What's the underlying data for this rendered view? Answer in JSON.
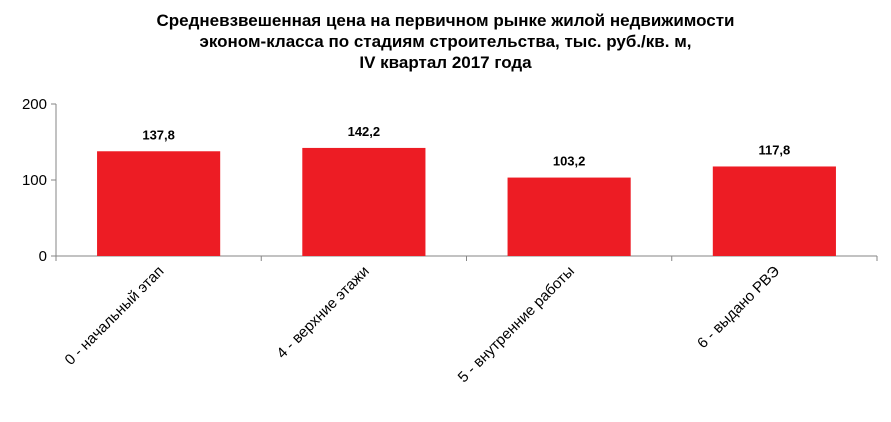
{
  "chart_data": {
    "type": "bar",
    "title_lines": [
      "Средневзвешенная цена на первичном рынке жилой недвижимости",
      "эконом-класса по стадиям строительства, тыс. руб./кв. м,",
      "IV квартал 2017 года"
    ],
    "categories": [
      "0 - начальный этап",
      "4 - верхние этажи",
      "5 - внутренние работы",
      "6 - выдано РВЭ"
    ],
    "values": [
      137.8,
      142.2,
      103.2,
      117.8
    ],
    "value_labels": [
      "137,8",
      "142,2",
      "103,2",
      "117,8"
    ],
    "ylim": [
      0,
      200
    ],
    "yticks": [
      0,
      100,
      200
    ],
    "ytick_labels": [
      "0",
      "100",
      "200"
    ],
    "xlabel": "",
    "ylabel": "",
    "legend": "none",
    "grid": false,
    "bar_color": "#ed1c24"
  }
}
